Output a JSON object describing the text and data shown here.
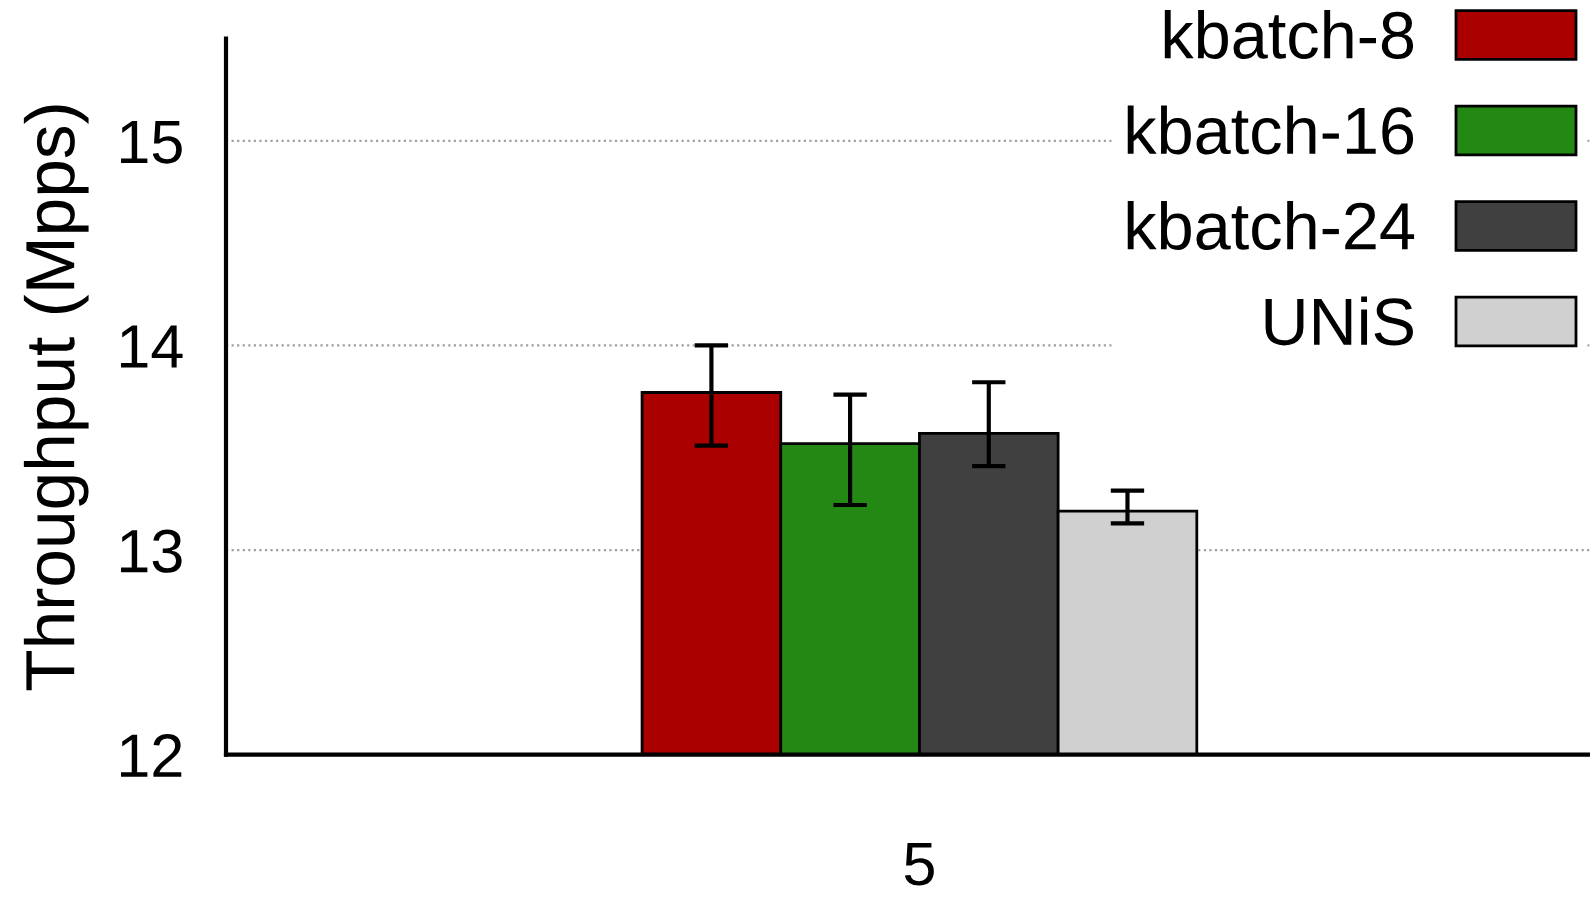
{
  "chart_data": {
    "type": "bar",
    "ylabel": "Throughput (Mpps)",
    "categories": [
      "5"
    ],
    "series": [
      {
        "name": "kbatch-8",
        "color": "#aa0000",
        "values": [
          13.77
        ],
        "errors": [
          [
            13.51,
            14.0
          ]
        ]
      },
      {
        "name": "kbatch-16",
        "color": "#248815",
        "values": [
          13.52
        ],
        "errors": [
          [
            13.22,
            13.76
          ]
        ]
      },
      {
        "name": "kbatch-24",
        "color": "#404040",
        "values": [
          13.57
        ],
        "errors": [
          [
            13.41,
            13.82
          ]
        ]
      },
      {
        "name": "UNiS",
        "color": "#d0d0d0",
        "values": [
          13.19
        ],
        "errors": [
          [
            13.13,
            13.29
          ]
        ]
      }
    ],
    "ylim": [
      12,
      15.5
    ],
    "yticks": [
      12,
      13,
      14,
      15
    ],
    "grid": "y",
    "legend": "top right"
  }
}
